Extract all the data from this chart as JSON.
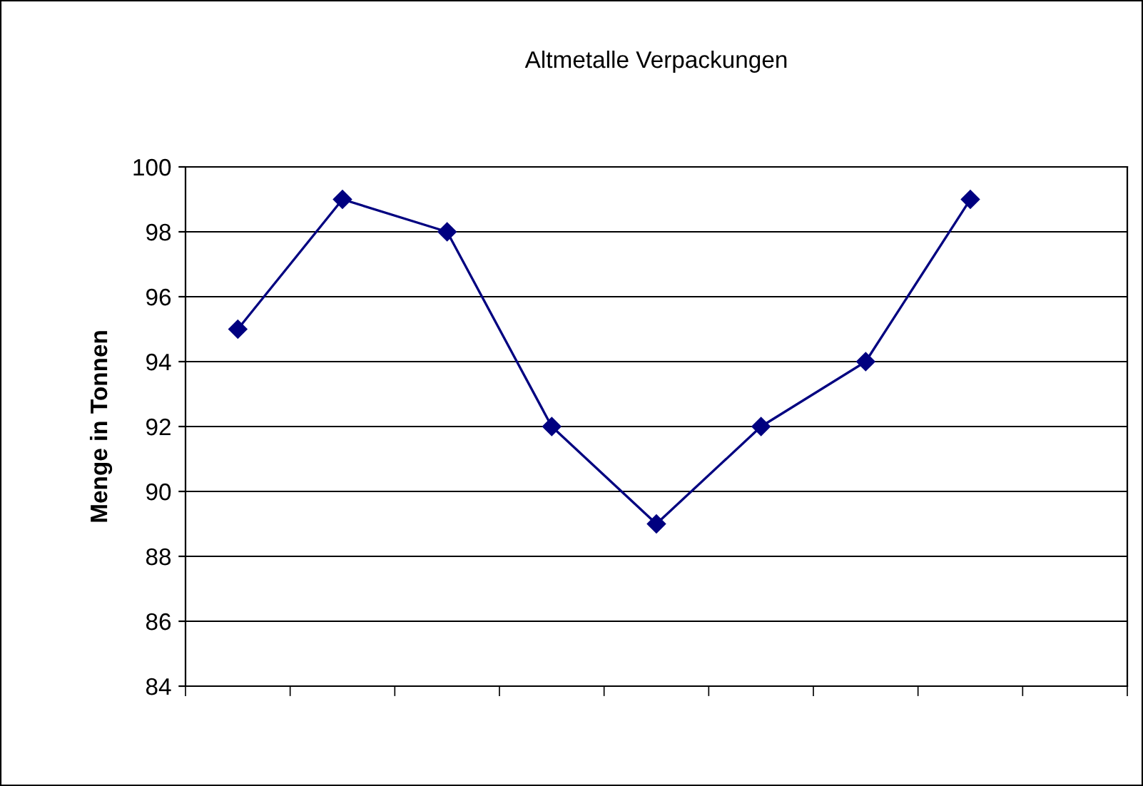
{
  "chart_data": {
    "type": "line",
    "title": "Altmetalle Verpackungen",
    "ylabel": "Menge in Tonnen",
    "categories": [
      null,
      null,
      null,
      null,
      null,
      null,
      null,
      null,
      null
    ],
    "series": [
      {
        "color": "#000080",
        "values": [
          95,
          99,
          98,
          92,
          89,
          92,
          94,
          99,
          null
        ]
      }
    ],
    "ylim": [
      84,
      100
    ],
    "yticks": [
      84,
      86,
      88,
      90,
      92,
      94,
      96,
      98,
      100
    ],
    "grid": "y",
    "marker": "diamond",
    "line_style": "solid",
    "tick_labels": "y",
    "legend": false
  }
}
